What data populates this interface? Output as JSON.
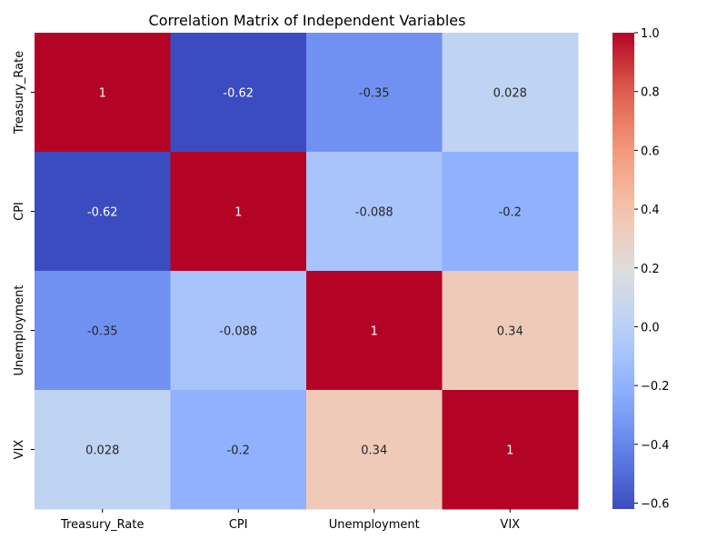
{
  "chart_data": {
    "type": "heatmap",
    "title": "Correlation Matrix of Independent Variables",
    "xlabel": "",
    "ylabel": "",
    "x_categories": [
      "Treasury_Rate",
      "CPI",
      "Unemployment",
      "VIX"
    ],
    "y_categories": [
      "Treasury_Rate",
      "CPI",
      "Unemployment",
      "VIX"
    ],
    "values": [
      [
        1,
        -0.62,
        -0.35,
        0.028
      ],
      [
        -0.62,
        1,
        -0.088,
        -0.2
      ],
      [
        -0.35,
        -0.088,
        1,
        0.34
      ],
      [
        0.028,
        -0.2,
        0.34,
        1
      ]
    ],
    "annotations": [
      [
        "1",
        "-0.62",
        "-0.35",
        "0.028"
      ],
      [
        "-0.62",
        "1",
        "-0.088",
        "-0.2"
      ],
      [
        "-0.35",
        "-0.088",
        "1",
        "0.34"
      ],
      [
        "0.028",
        "-0.2",
        "0.34",
        "1"
      ]
    ],
    "colormap": "coolwarm",
    "vmin": -0.62,
    "vmax": 1,
    "colorbar_ticks": [
      1.0,
      0.8,
      0.6,
      0.4,
      0.2,
      0.0,
      -0.2,
      -0.4,
      -0.6
    ],
    "colorbar_tick_labels": [
      "1.0",
      "0.8",
      "0.6",
      "0.4",
      "0.2",
      "0.0",
      "−0.2",
      "−0.4",
      "−0.6"
    ],
    "colorbar_position": "right",
    "grid": false
  }
}
